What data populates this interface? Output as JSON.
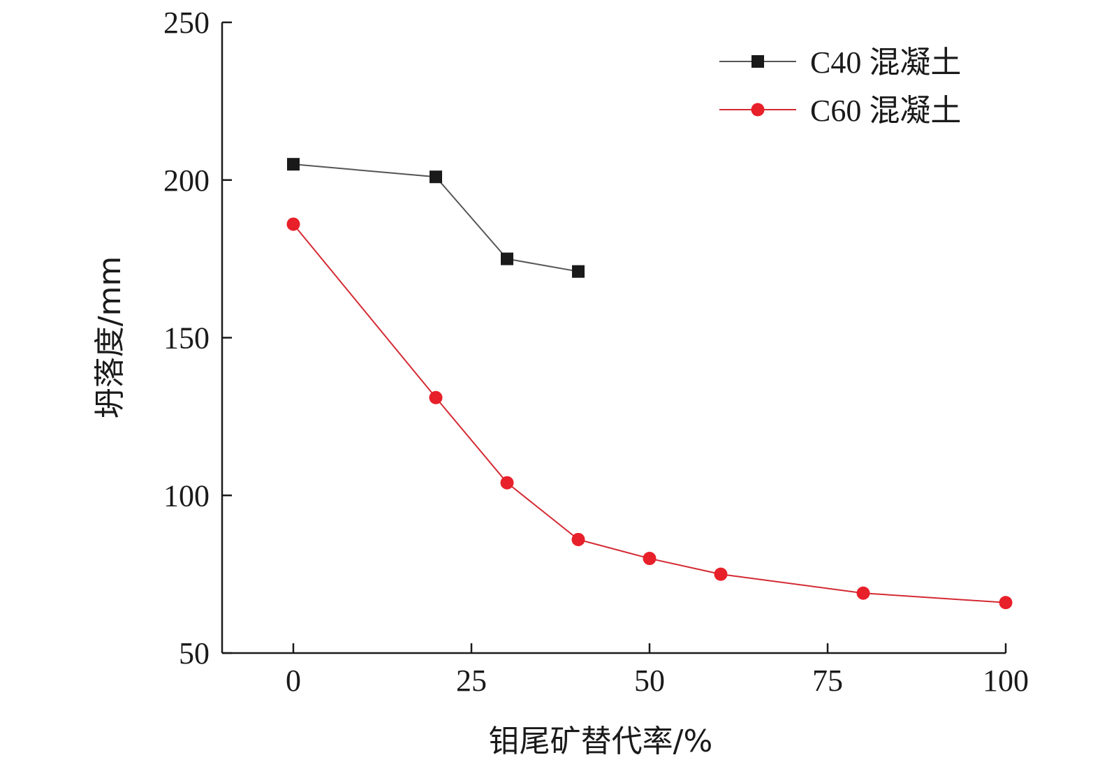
{
  "chart_data": {
    "type": "line",
    "title": "",
    "xlabel": "钼尾矿替代率/%",
    "ylabel": "坍落度/mm",
    "xlim": [
      -10,
      100
    ],
    "ylim": [
      50,
      250
    ],
    "xticks": [
      0,
      25,
      50,
      75,
      100
    ],
    "yticks": [
      50,
      100,
      150,
      200,
      250
    ],
    "grid": false,
    "legend_position": "top-right",
    "series": [
      {
        "name": "C40 混凝土",
        "color": "#1a1a1a",
        "line_color": "#555555",
        "marker": "square",
        "x": [
          0,
          20,
          30,
          40
        ],
        "y": [
          205,
          201,
          175,
          171
        ]
      },
      {
        "name": "C60 混凝土",
        "color": "#e8202a",
        "line_color": "#d42a33",
        "marker": "circle",
        "x": [
          0,
          20,
          30,
          40,
          50,
          60,
          80,
          100
        ],
        "y": [
          186,
          131,
          104,
          86,
          80,
          75,
          69,
          66
        ]
      }
    ]
  }
}
